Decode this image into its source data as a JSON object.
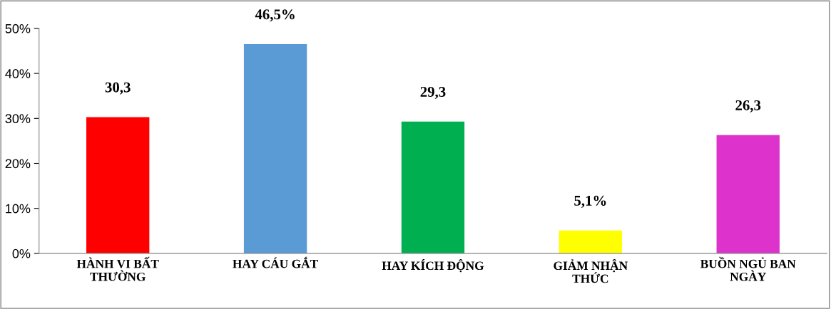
{
  "chart_data": {
    "type": "bar",
    "categories": [
      "HÀNH VI BẤT\nTHƯỜNG",
      "HAY CÁU GẮT",
      "HAY KÍCH ĐỘNG",
      "GIẢM NHẬN\nTHỨC",
      "BUỒN NGỦ BAN\nNGÀY"
    ],
    "values": [
      30.3,
      46.5,
      29.3,
      5.1,
      26.3
    ],
    "colors": [
      "#ff0000",
      "#5b9bd5",
      "#00b050",
      "#ffff00",
      "#dd33cc"
    ],
    "value_labels": [
      "30,3",
      "46,5%",
      "29,3",
      "5,1%",
      "26,3"
    ],
    "ylim": [
      0,
      50
    ],
    "yticks": [
      {
        "value": 0,
        "label": "0%"
      },
      {
        "value": 10,
        "label": "10%"
      },
      {
        "value": 20,
        "label": "20%"
      },
      {
        "value": 30,
        "label": "30%"
      },
      {
        "value": 40,
        "label": "40%"
      },
      {
        "value": 50,
        "label": "50%"
      }
    ],
    "grid": false,
    "legend": false
  }
}
